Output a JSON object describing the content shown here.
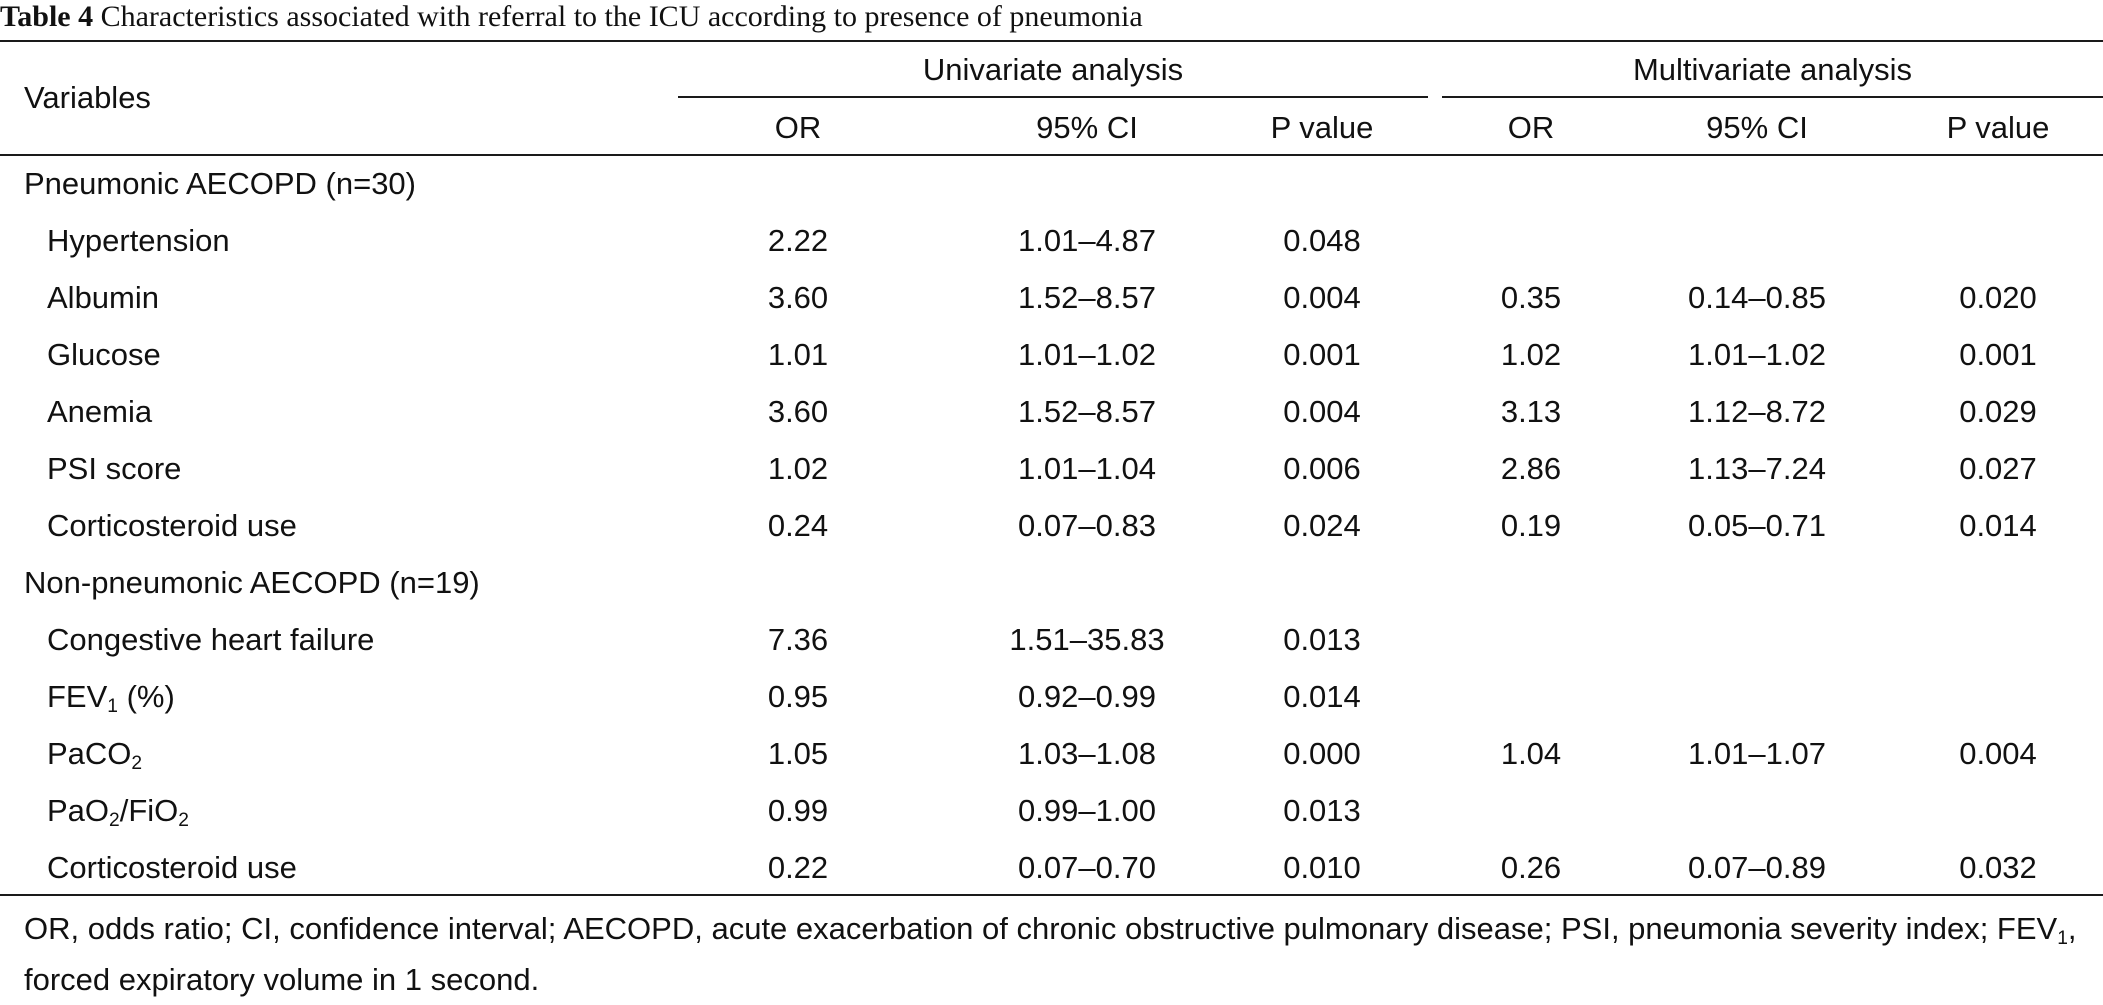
{
  "caption": {
    "label": "Table 4",
    "text": "Characteristics associated with referral to the ICU according to presence of pneumonia"
  },
  "header": {
    "variables": "Variables",
    "univariate": "Univariate analysis",
    "multivariate": "Multivariate analysis",
    "or": "OR",
    "ci": "95% CI",
    "p": "P value"
  },
  "sections": [
    {
      "title": "Pneumonic AECOPD (n=30)",
      "rows": [
        {
          "name": "Hypertension",
          "uni_or": "2.22",
          "uni_ci": "1.01–4.87",
          "uni_p": "0.048",
          "multi_or": "",
          "multi_ci": "",
          "multi_p": ""
        },
        {
          "name": "Albumin",
          "uni_or": "3.60",
          "uni_ci": "1.52–8.57",
          "uni_p": "0.004",
          "multi_or": "0.35",
          "multi_ci": "0.14–0.85",
          "multi_p": "0.020"
        },
        {
          "name": "Glucose",
          "uni_or": "1.01",
          "uni_ci": "1.01–1.02",
          "uni_p": "0.001",
          "multi_or": "1.02",
          "multi_ci": "1.01–1.02",
          "multi_p": "0.001"
        },
        {
          "name": "Anemia",
          "uni_or": "3.60",
          "uni_ci": "1.52–8.57",
          "uni_p": "0.004",
          "multi_or": "3.13",
          "multi_ci": "1.12–8.72",
          "multi_p": "0.029"
        },
        {
          "name": "PSI score",
          "uni_or": "1.02",
          "uni_ci": "1.01–1.04",
          "uni_p": "0.006",
          "multi_or": "2.86",
          "multi_ci": "1.13–7.24",
          "multi_p": "0.027"
        },
        {
          "name": "Corticosteroid use",
          "uni_or": "0.24",
          "uni_ci": "0.07–0.83",
          "uni_p": "0.024",
          "multi_or": "0.19",
          "multi_ci": "0.05–0.71",
          "multi_p": "0.014"
        }
      ]
    },
    {
      "title": "Non-pneumonic AECOPD (n=19)",
      "rows": [
        {
          "name": "Congestive heart failure",
          "uni_or": "7.36",
          "uni_ci": "1.51–35.83",
          "uni_p": "0.013",
          "multi_or": "",
          "multi_ci": "",
          "multi_p": ""
        },
        {
          "name": "FEV₁ (%)",
          "name_parts": {
            "a": "FEV",
            "sub1": "1",
            "b": " (%)"
          },
          "uni_or": "0.95",
          "uni_ci": "0.92–0.99",
          "uni_p": "0.014",
          "multi_or": "",
          "multi_ci": "",
          "multi_p": ""
        },
        {
          "name": "PaCO₂",
          "name_parts": {
            "a": "PaCO",
            "sub1": "2"
          },
          "uni_or": "1.05",
          "uni_ci": "1.03–1.08",
          "uni_p": "0.000",
          "multi_or": "1.04",
          "multi_ci": "1.01–1.07",
          "multi_p": "0.004"
        },
        {
          "name": "PaO₂/FiO₂",
          "name_parts": {
            "a": "PaO",
            "sub1": "2",
            "b": "/FiO",
            "sub2": "2"
          },
          "uni_or": "0.99",
          "uni_ci": "0.99–1.00",
          "uni_p": "0.013",
          "multi_or": "",
          "multi_ci": "",
          "multi_p": ""
        },
        {
          "name": "Corticosteroid use",
          "uni_or": "0.22",
          "uni_ci": "0.07–0.70",
          "uni_p": "0.010",
          "multi_or": "0.26",
          "multi_ci": "0.07–0.89",
          "multi_p": "0.032"
        }
      ]
    }
  ],
  "footnote": {
    "part1": "OR, odds ratio; CI, confidence interval; AECOPD, acute exacerbation of chronic obstructive pulmonary disease; PSI, pneumonia severity index; FEV",
    "sub": "1",
    "part2": ", forced expiratory volume in 1 second."
  }
}
